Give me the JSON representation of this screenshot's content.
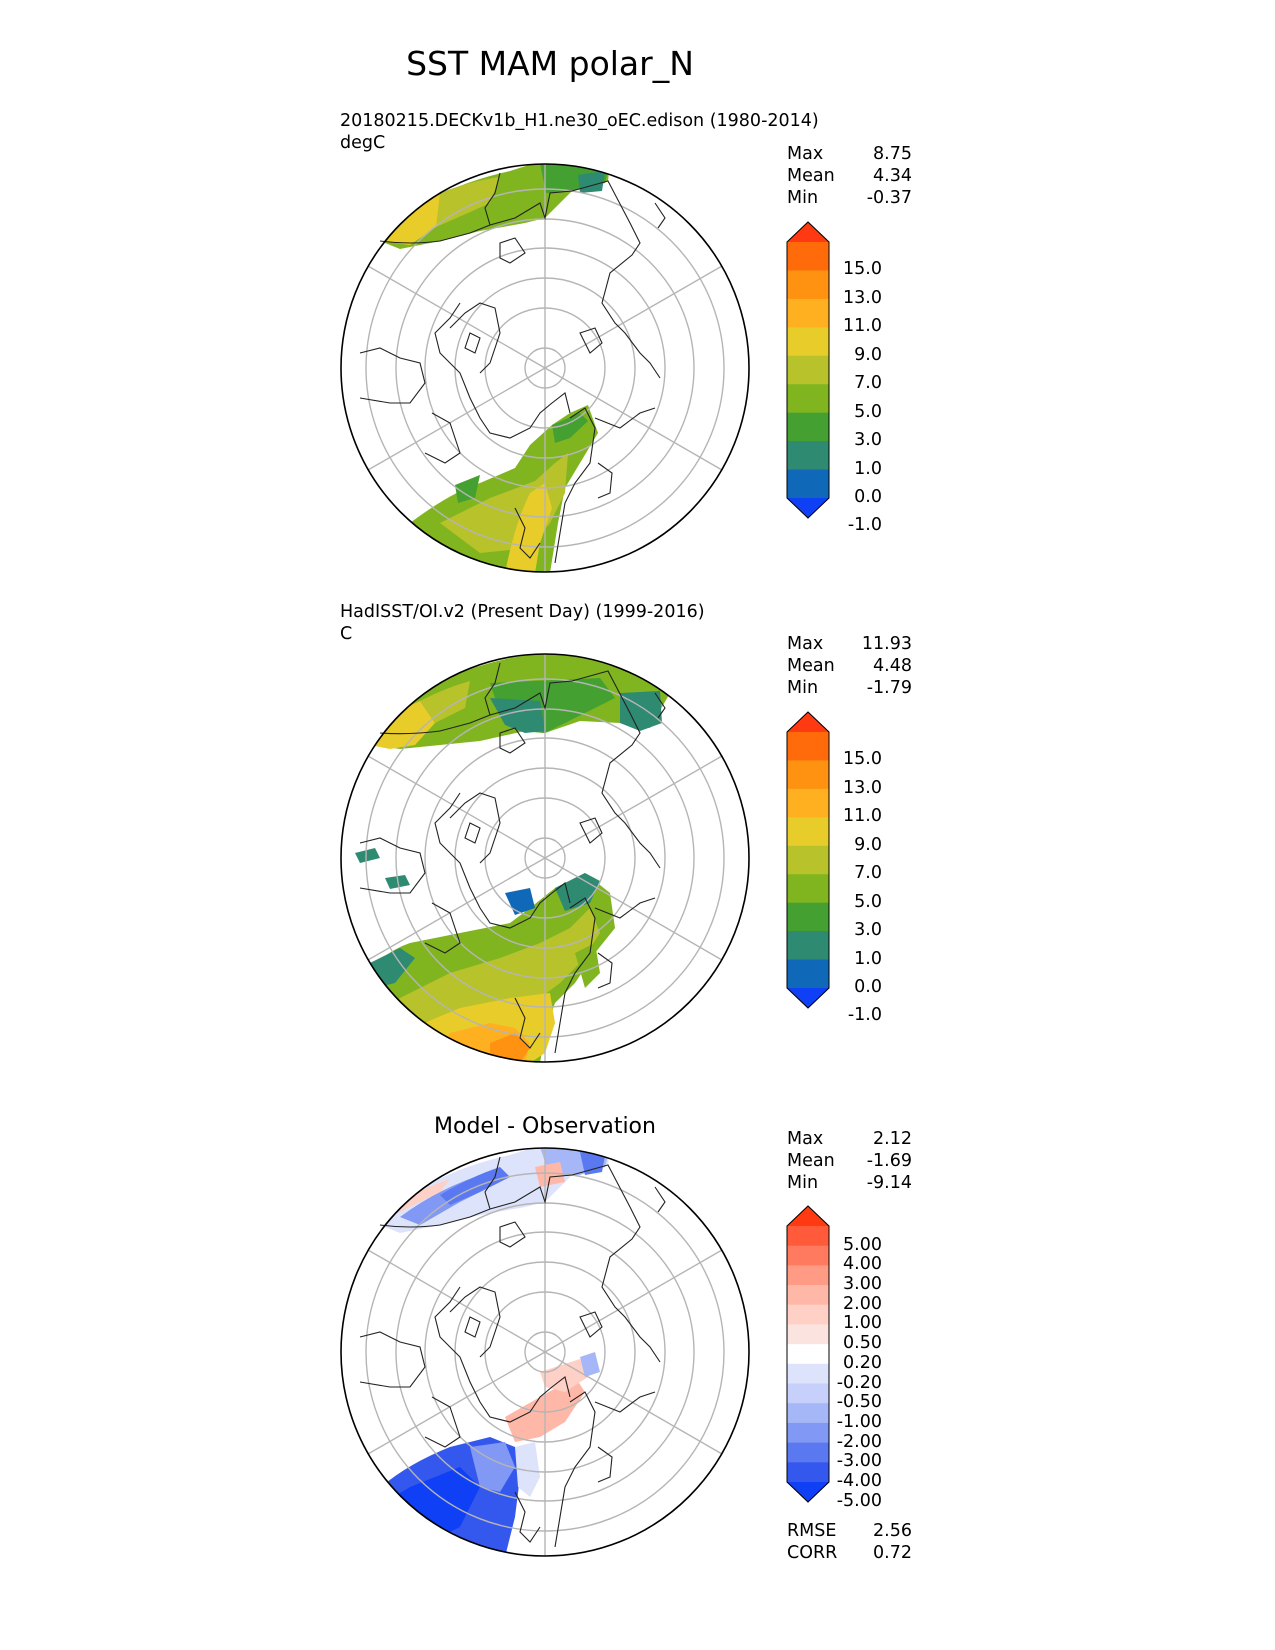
{
  "title": "SST MAM polar_N",
  "panels": [
    {
      "label_line1": "20180215.DECKv1b_H1.ne30_oEC.edison (1980-2014)",
      "label_line2": "degC",
      "stats": {
        "max_label": "Max",
        "max": "8.75",
        "mean_label": "Mean",
        "mean": "4.34",
        "min_label": "Min",
        "min": "-0.37"
      },
      "colorbar": {
        "ticks": [
          "15.0",
          "13.0",
          "11.0",
          "9.0",
          "7.0",
          "5.0",
          "3.0",
          "1.0",
          "0.0",
          "-1.0"
        ],
        "colors": [
          "#ff3a12",
          "#ff6a0a",
          "#ff9210",
          "#ffb020",
          "#e8cc2a",
          "#b8c22a",
          "#80b520",
          "#44a030",
          "#2e8a70",
          "#1068b8",
          "#1040f5"
        ]
      }
    },
    {
      "label_line1": "HadISST/OI.v2 (Present Day) (1999-2016)",
      "label_line2": "C",
      "stats": {
        "max_label": "Max",
        "max": "11.93",
        "mean_label": "Mean",
        "mean": "4.48",
        "min_label": "Min",
        "min": "-1.79"
      },
      "colorbar": {
        "ticks": [
          "15.0",
          "13.0",
          "11.0",
          "9.0",
          "7.0",
          "5.0",
          "3.0",
          "1.0",
          "0.0",
          "-1.0"
        ],
        "colors": [
          "#ff3a12",
          "#ff6a0a",
          "#ff9210",
          "#ffb020",
          "#e8cc2a",
          "#b8c22a",
          "#80b520",
          "#44a030",
          "#2e8a70",
          "#1068b8",
          "#1040f5"
        ]
      }
    },
    {
      "title": "Model - Observation",
      "stats": {
        "max_label": "Max",
        "max": "2.12",
        "mean_label": "Mean",
        "mean": "-1.69",
        "min_label": "Min",
        "min": "-9.14"
      },
      "colorbar": {
        "ticks": [
          "5.00",
          "4.00",
          "3.00",
          "2.00",
          "1.00",
          "0.50",
          "0.20",
          "-0.20",
          "-0.50",
          "-1.00",
          "-2.00",
          "-3.00",
          "-4.00",
          "-5.00"
        ],
        "colors": [
          "#ff3a12",
          "#ff5a3a",
          "#ff7a5e",
          "#ff9a85",
          "#ffb8a8",
          "#ffd0c6",
          "#fbe4df",
          "#ffffff",
          "#dde3fa",
          "#c6d0fa",
          "#a6b7f7",
          "#8198f4",
          "#5a78f0",
          "#3458ee",
          "#1040f5"
        ]
      },
      "metrics": {
        "rmse_label": "RMSE",
        "rmse": "2.56",
        "corr_label": "CORR",
        "corr": "0.72"
      }
    }
  ]
}
